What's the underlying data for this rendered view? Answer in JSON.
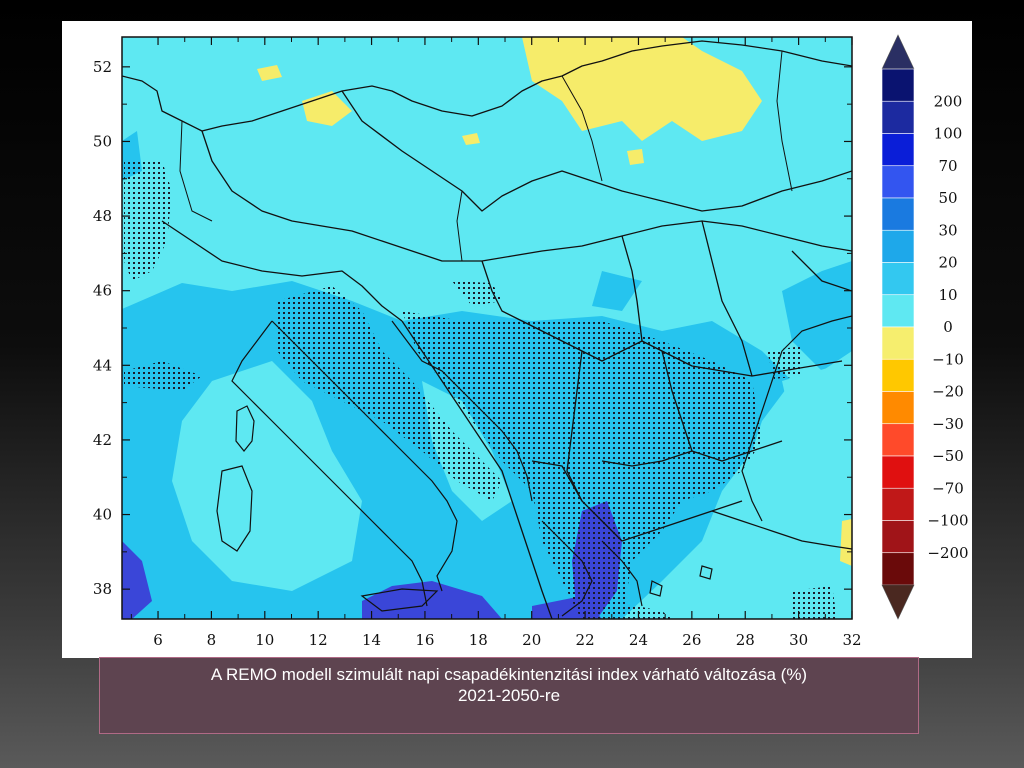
{
  "figure": {
    "x_ticks": [
      "6",
      "8",
      "10",
      "12",
      "14",
      "16",
      "18",
      "20",
      "22",
      "24",
      "26",
      "28",
      "30",
      "32"
    ],
    "y_ticks": [
      "52",
      "50",
      "48",
      "46",
      "44",
      "42",
      "40",
      "38"
    ],
    "colorbar": {
      "labels": [
        "200",
        "100",
        "70",
        "50",
        "30",
        "20",
        "10",
        "0",
        "−10",
        "−20",
        "−30",
        "−50",
        "−70",
        "−100",
        "−200"
      ],
      "colors": [
        "#2a2f63",
        "#0a1370",
        "#1c2aa0",
        "#0a1ed8",
        "#3355f0",
        "#1a7ae0",
        "#1ea8ea",
        "#33c8f0",
        "#5fe8f2",
        "#f6ee6e",
        "#ffc800",
        "#ff8a00",
        "#ff4a2a",
        "#e01010",
        "#c01818",
        "#a01418",
        "#6a0a0a",
        "#4a2820"
      ]
    }
  },
  "caption": {
    "line1": "A REMO modell szimulált napi csapadékintenzitási index várható változása (%)",
    "line2": "2021-2050-re"
  },
  "colors": {
    "map_base": "#5ee8f2",
    "map_medium": "#26c4ee",
    "map_deep": "#3a46d8",
    "map_yellow": "#f6ec6a"
  }
}
